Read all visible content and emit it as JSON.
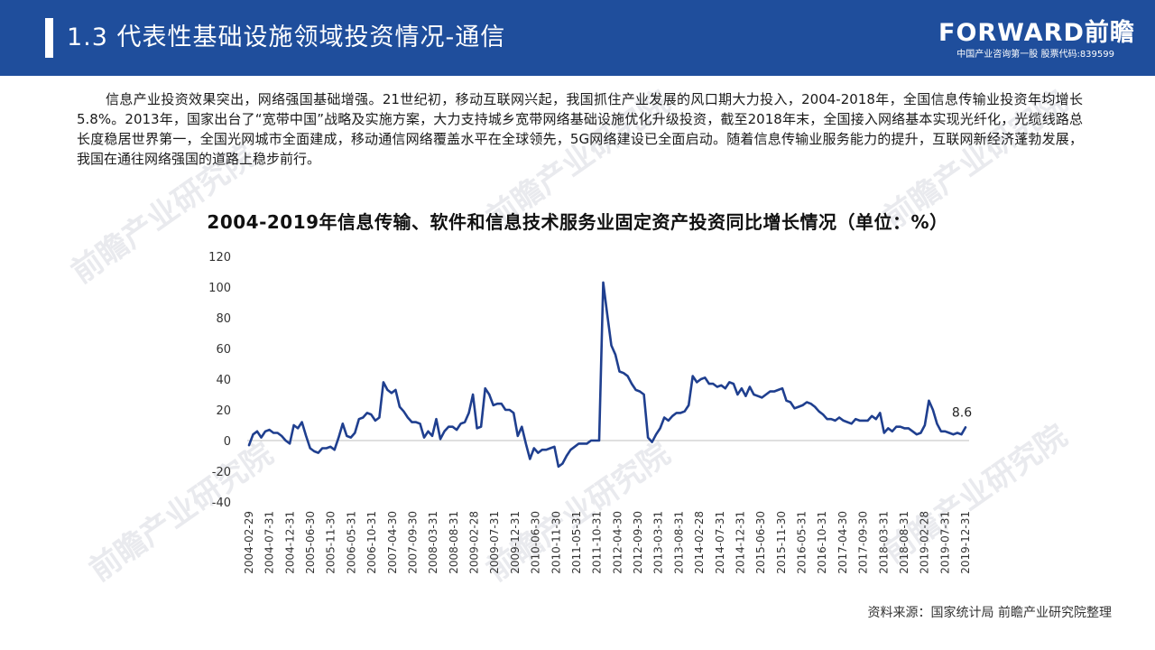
{
  "header": {
    "title": "1.3 代表性基础设施领域投资情况-通信",
    "brand_logo": "FORWARD前瞻",
    "brand_sub": "中国产业咨询第一股 股票代码:839599"
  },
  "paragraph": "信息产业投资效果突出，网络强国基础增强。21世纪初，移动互联网兴起，我国抓住产业发展的风口期大力投入，2004-2018年，全国信息传输业投资年均增长5.8%。2013年，国家出台了“宽带中国”战略及实施方案，大力支持城乡宽带网络基础设施优化升级投资，截至2018年末，全国接入网络基本实现光纤化，光缆线路总长度稳居世界第一，全国光网城市全面建成，移动通信网络覆盖水平在全球领先，5G网络建设已全面启动。随着信息传输业服务能力的提升，互联网新经济蓬勃发展，我国在通往网络强国的道路上稳步前行。",
  "source": "资料来源：国家统计局 前瞻产业研究院整理",
  "watermark": "前瞻产业研究院",
  "colors": {
    "header_bg": "#1f4e9c",
    "line": "#1f3f8f"
  },
  "chart_data": {
    "type": "line",
    "title": "2004-2019年信息传输、软件和信息技术服务业固定资产投资同比增长情况（单位：%）",
    "xlabel": "",
    "ylabel": "",
    "ylim": [
      -40,
      120
    ],
    "yticks": [
      -40,
      -20,
      0,
      20,
      40,
      60,
      80,
      100,
      120
    ],
    "grid": false,
    "x_tick_labels": [
      "2004-02-29",
      "2004-07-31",
      "2004-12-31",
      "2005-06-30",
      "2005-11-30",
      "2006-05-31",
      "2006-10-31",
      "2007-04-30",
      "2007-09-30",
      "2008-03-31",
      "2008-08-31",
      "2009-02-28",
      "2009-07-31",
      "2009-12-31",
      "2010-06-30",
      "2010-11-30",
      "2011-05-31",
      "2011-10-31",
      "2012-04-30",
      "2012-09-30",
      "2013-03-31",
      "2013-08-31",
      "2014-02-28",
      "2014-07-31",
      "2014-12-31",
      "2015-06-30",
      "2015-11-30",
      "2016-05-31",
      "2016-10-31",
      "2017-04-30",
      "2017-09-30",
      "2018-03-31",
      "2018-08-31",
      "2019-02-28",
      "2019-07-31",
      "2019-12-31"
    ],
    "annotation": {
      "text": "8.6",
      "index": -1
    },
    "series": [
      {
        "values": [
          -3,
          4,
          6,
          2,
          6,
          7,
          5,
          5,
          3,
          0,
          -2,
          10,
          8,
          12,
          3,
          -5,
          -7,
          -8,
          -5,
          -5,
          -4,
          -6,
          2,
          11,
          3,
          2,
          5,
          14,
          15,
          18,
          17,
          13,
          15,
          38,
          33,
          31,
          33,
          22,
          19,
          15,
          12,
          12,
          11,
          2,
          6,
          3,
          14,
          1,
          6,
          9,
          9,
          7,
          11,
          12,
          18,
          30,
          8,
          9,
          34,
          30,
          23,
          24,
          24,
          20,
          20,
          18,
          3,
          9,
          -2,
          -12,
          -5,
          -8,
          -6,
          -6,
          -5,
          -4,
          -17,
          -15,
          -10,
          -6,
          -4,
          -2,
          -2,
          -2,
          0,
          0,
          0,
          103,
          82,
          62,
          56,
          45,
          44,
          42,
          37,
          33,
          32,
          30,
          2,
          -1,
          4,
          8,
          15,
          13,
          16,
          18,
          18,
          19,
          23,
          42,
          38,
          40,
          41,
          37,
          37,
          35,
          36,
          34,
          38,
          37,
          30,
          34,
          29,
          35,
          30,
          29,
          28,
          30,
          32,
          32,
          33,
          34,
          26,
          25,
          21,
          22,
          23,
          25,
          24,
          22,
          19,
          17,
          14,
          14,
          13,
          15,
          13,
          12,
          11,
          14,
          13,
          13,
          13,
          16,
          14,
          18,
          5,
          8,
          6,
          9,
          9,
          8,
          8,
          6,
          4,
          5,
          10,
          26,
          20,
          11,
          6,
          6,
          5,
          4,
          5,
          4,
          8.6
        ]
      }
    ]
  }
}
